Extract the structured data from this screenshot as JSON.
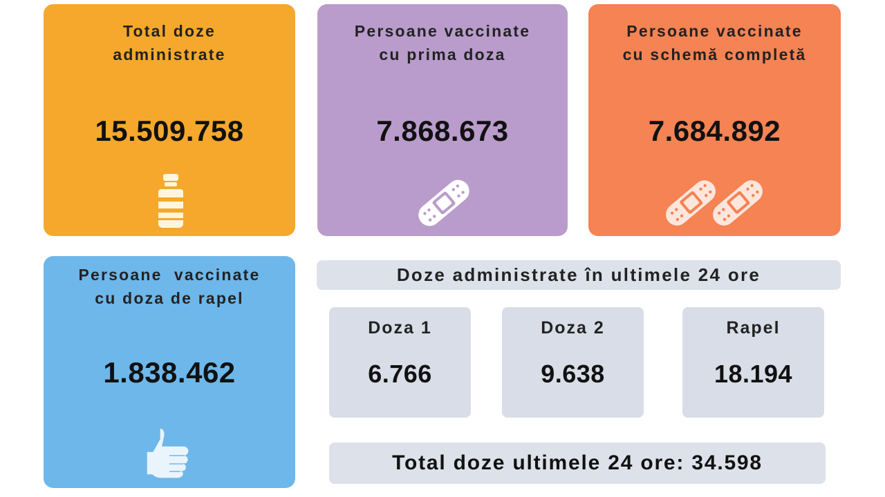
{
  "cards": {
    "total": {
      "title_line1": "Total doze",
      "title_line2": "administrate",
      "value": "15.509.758",
      "icon": "vial-icon",
      "color": "#f5a82b"
    },
    "first": {
      "title_line1": "Persoane vaccinate",
      "title_line2": "cu prima doza",
      "value": "7.868.673",
      "icon": "bandage-icon",
      "color": "#b99ccb"
    },
    "full": {
      "title_line1": "Persoane vaccinate",
      "title_line2": "cu schemă completă",
      "value": "7.684.892",
      "icon": "two-bandages-icon",
      "color": "#f58353"
    },
    "booster": {
      "title_line1": "Persoane  vaccinate",
      "title_line2": "cu doza de rapel",
      "value": "1.838.462",
      "icon": "thumbs-up-icon",
      "color": "#6db7ea"
    }
  },
  "last24h": {
    "header": "Doze administrate în ultimele 24 ore",
    "doses": [
      {
        "label": "Doza 1",
        "value": "6.766"
      },
      {
        "label": "Doza 2",
        "value": "9.638"
      },
      {
        "label": "Rapel",
        "value": "18.194"
      }
    ],
    "total_text": "Total doze ultimele 24 ore: 34.598"
  }
}
